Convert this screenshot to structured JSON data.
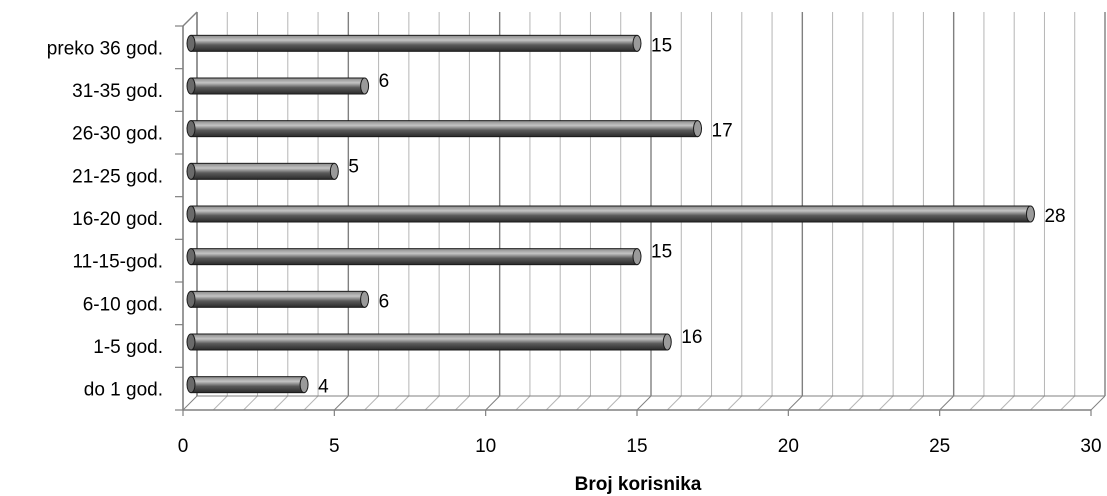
{
  "chart_data": {
    "type": "bar",
    "orientation": "horizontal",
    "categories": [
      "do 1 god.",
      "1-5 god.",
      "6-10 god.",
      "11-15-god.",
      "16-20 god.",
      "21-25 god.",
      "26-30 god.",
      "31-35 god.",
      "preko 36 god."
    ],
    "values": [
      4,
      16,
      6,
      15,
      28,
      5,
      17,
      6,
      15
    ],
    "xlabel": "Broj korisnika",
    "xlim": [
      0,
      30
    ],
    "xticks": [
      0,
      5,
      10,
      15,
      20,
      25,
      30
    ],
    "grid": true,
    "style": "3d-cylinder",
    "colors": {
      "bar": "#555555",
      "grid": "#a6a6a6",
      "text": "#000000"
    }
  }
}
